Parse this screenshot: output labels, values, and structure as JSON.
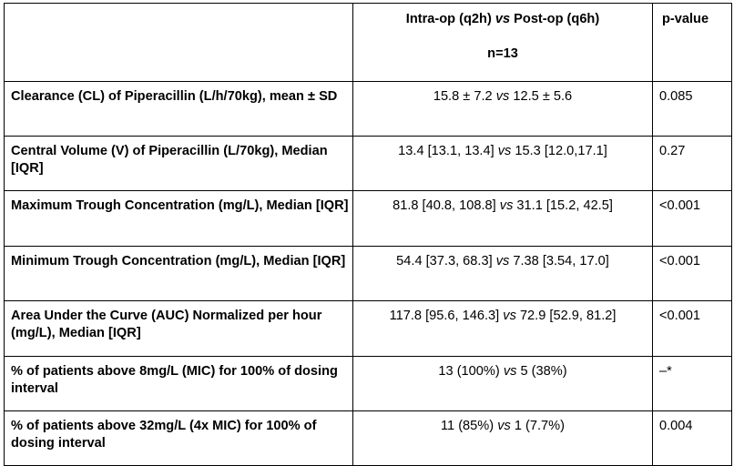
{
  "header": {
    "col1": "",
    "col2_left": "Intra-op (q2h)",
    "col2_vs": "vs",
    "col2_right": "Post-op (q6h)",
    "col2_n": "n=13",
    "col3": "p-value"
  },
  "rows": [
    {
      "label": "Clearance (CL) of Piperacillin (L/h/70kg), mean ± SD",
      "left": "15.8 ± 7.2",
      "vs": "vs",
      "right": "12.5 ± 5.6",
      "p": "0.085"
    },
    {
      "label": "Central Volume (V) of Piperacillin (L/70kg), Median [IQR]",
      "left": "13.4 [13.1, 13.4]",
      "vs": "vs",
      "right": "15.3 [12.0,17.1]",
      "p": "0.27"
    },
    {
      "label": "Maximum Trough Concentration (mg/L), Median [IQR]",
      "left": "81.8 [40.8, 108.8]",
      "vs": "vs",
      "right": "31.1 [15.2, 42.5]",
      "p": "<0.001"
    },
    {
      "label": "Minimum Trough Concentration (mg/L), Median [IQR]",
      "left": "54.4 [37.3, 68.3]",
      "vs": "vs",
      "right": "7.38 [3.54, 17.0]",
      "p": "<0.001"
    },
    {
      "label": "Area Under the Curve (AUC) Normalized per hour (mg/L), Median [IQR]",
      "left": "117.8 [95.6, 146.3]",
      "vs": "vs",
      "right": " 72.9 [52.9, 81.2]",
      "p": "<0.001"
    },
    {
      "label": "% of patients above 8mg/L (MIC) for 100% of dosing interval",
      "left": "13 (100%)",
      "vs": "vs",
      "right": "5 (38%)",
      "p": "–*"
    },
    {
      "label": "% of patients above 32mg/L (4x MIC) for 100% of dosing interval",
      "left": "11 (85%)",
      "vs": "vs",
      "right": "1 (7.7%)",
      "p": "0.004"
    }
  ]
}
